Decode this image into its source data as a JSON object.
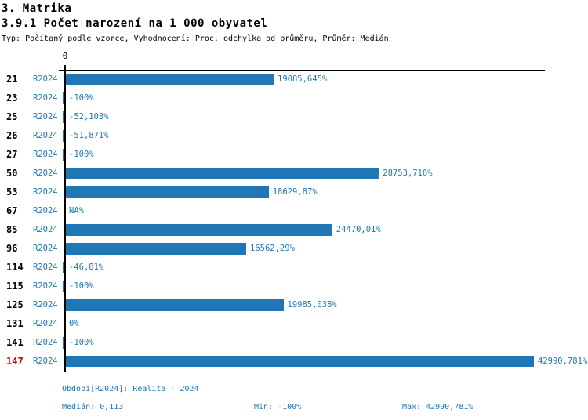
{
  "header": {
    "title": "3. Matrika",
    "subtitle": "3.9.1 Počet narození na 1 000 obyvatel",
    "note": "Typ: Počítaný podle vzorce, Vyhodnocení: Proc. odchylka od průměru, Průměr: Medián"
  },
  "chart_data": {
    "type": "bar",
    "orientation": "horizontal",
    "title": "3.9.1 Počet narození na 1 000 obyvatel",
    "series_name": "R2024",
    "categories": [
      "21",
      "23",
      "25",
      "26",
      "27",
      "50",
      "53",
      "67",
      "85",
      "96",
      "114",
      "115",
      "125",
      "131",
      "141",
      "147"
    ],
    "values": [
      19085.645,
      -100,
      -52.103,
      -51.871,
      -100,
      28753.716,
      18629.87,
      null,
      24470.01,
      16562.29,
      -46.81,
      -100,
      19985.038,
      0,
      -100,
      42990.781
    ],
    "value_labels": [
      "19085,645%",
      "-100%",
      "-52,103%",
      "-51,871%",
      "-100%",
      "28753,716%",
      "18629,87%",
      "NA%",
      "24470,01%",
      "16562,29%",
      "-46,81%",
      "-100%",
      "19985,038%",
      "0%",
      "-100%",
      "42990,781%"
    ],
    "x_axis": {
      "position": "top",
      "tick_labels": [
        "0"
      ],
      "xlim": [
        0,
        44000
      ]
    },
    "highlight": {
      "category": "147",
      "color": "#cc0000"
    },
    "bar_color": "#2176b5",
    "value_text_color": "#1f77b4",
    "legend_position": "none",
    "grid": false
  },
  "footer": {
    "period_label": "Období[R2024]: Realita - 2024",
    "median_label": "Medián: 0,113",
    "min_label": "Min: -100%",
    "max_label": "Max: 42990,781%"
  }
}
